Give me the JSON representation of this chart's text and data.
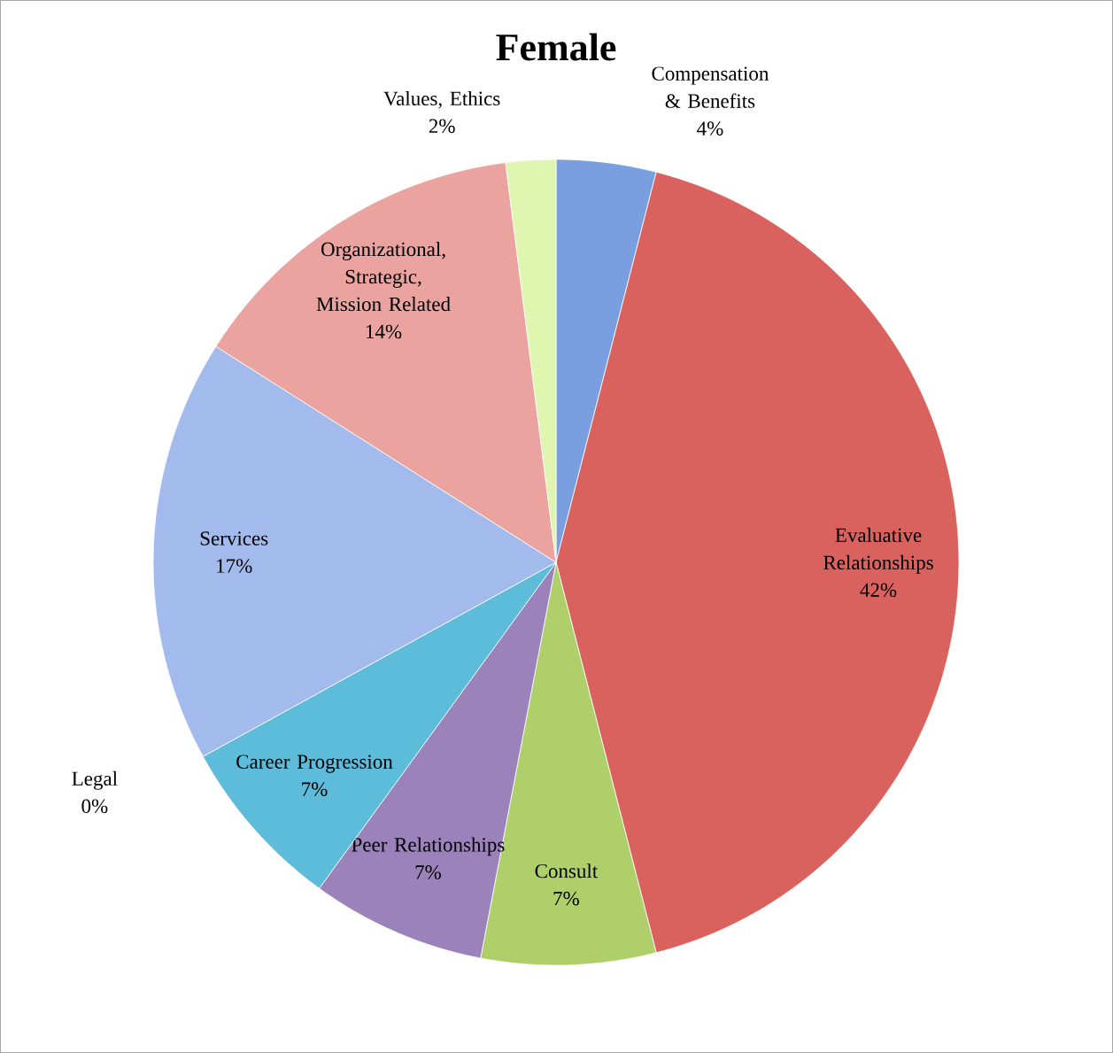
{
  "chart_data": {
    "type": "pie",
    "title": "Female",
    "categories": [
      "Compensation & Benefits",
      "Evaluative Relationships",
      "Consult",
      "Peer Relationships",
      "Career Progression",
      "Legal",
      "Services",
      "Organizational, Strategic, Mission Related",
      "Values, Ethics"
    ],
    "values": [
      4,
      42,
      7,
      7,
      7,
      0,
      17,
      14,
      2
    ],
    "value_labels": [
      "4%",
      "42%",
      "7%",
      "7%",
      "7%",
      "0%",
      "17%",
      "14%",
      "2%"
    ],
    "colors": [
      "#7a9fe0",
      "#d9625f",
      "#aecf6a",
      "#9b82bb",
      "#5cbcd9",
      "#f0872e",
      "#a3bbec",
      "#eba39f",
      "#dff5b0"
    ]
  }
}
